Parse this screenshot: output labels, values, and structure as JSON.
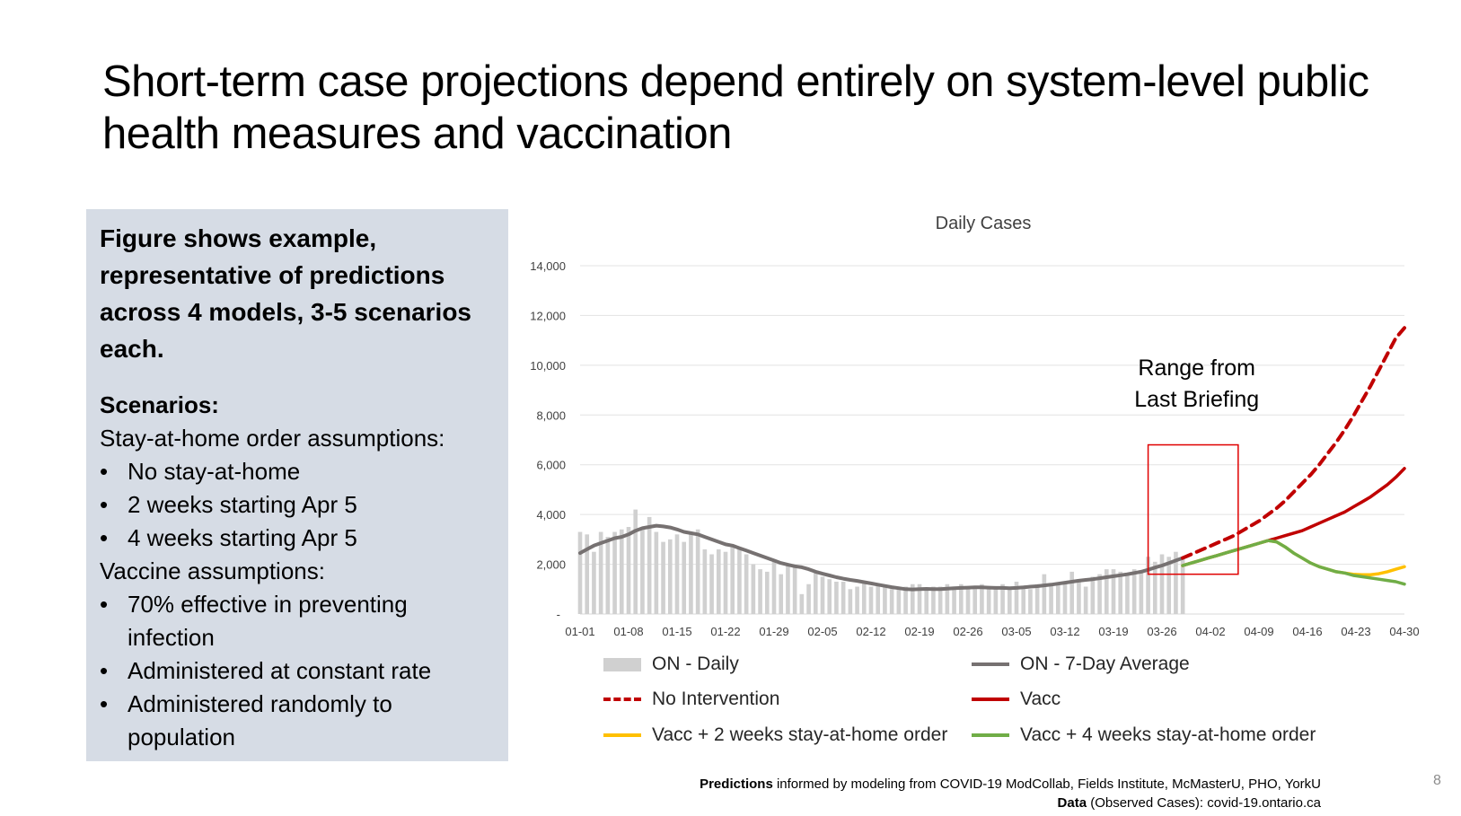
{
  "title": "Short-term case projections depend entirely on system-level public health measures and vaccination",
  "panel": {
    "intro": "Figure shows example, representative of predictions across 4 models, 3-5 scenarios each.",
    "scenarios_heading": "Scenarios:",
    "stay_heading": "Stay-at-home order assumptions:",
    "stay_items": [
      "No stay-at-home",
      "2 weeks starting Apr 5",
      "4 weeks starting Apr 5"
    ],
    "vaccine_heading": "Vaccine assumptions:",
    "vaccine_items": [
      "70% effective in preventing infection",
      "Administered at constant rate",
      "Administered randomly to population"
    ]
  },
  "chart_data": {
    "type": "line",
    "title": "Daily Cases",
    "y_ticks": [
      "-",
      "2,000",
      "4,000",
      "6,000",
      "8,000",
      "10,000",
      "12,000",
      "14,000"
    ],
    "ylim": [
      0,
      14000
    ],
    "x_ticks": [
      "01-01",
      "01-08",
      "01-15",
      "01-22",
      "01-29",
      "02-05",
      "02-12",
      "02-19",
      "02-26",
      "03-05",
      "03-12",
      "03-19",
      "03-26",
      "04-02",
      "04-09",
      "04-16",
      "04-23",
      "04-30"
    ],
    "grid": true,
    "annotation": {
      "text_line1": "Range from",
      "text_line2": "Last Briefing",
      "x_start": "03-24",
      "x_end": "04-06",
      "y_start": 1600,
      "y_end": 6800
    },
    "daily": [
      3300,
      3200,
      2500,
      3300,
      3100,
      3300,
      3400,
      3500,
      4200,
      3400,
      3900,
      3300,
      2900,
      3000,
      3200,
      2900,
      3300,
      3400,
      2600,
      2400,
      2600,
      2500,
      2700,
      2600,
      2400,
      2000,
      1800,
      1700,
      2100,
      1600,
      2000,
      1900,
      800,
      1200,
      1700,
      1500,
      1400,
      1300,
      1300,
      1000,
      1100,
      1300,
      1100,
      1200,
      1100,
      1000,
      1000,
      1100,
      1200,
      1200,
      1000,
      1100,
      1100,
      1200,
      1100,
      1200,
      1000,
      1100,
      1200,
      1100,
      1000,
      1200,
      1000,
      1300,
      1100,
      1000,
      1200,
      1600,
      1200,
      1200,
      1300,
      1700,
      1400,
      1100,
      1500,
      1600,
      1800,
      1800,
      1700,
      1600,
      1800,
      1700,
      2300,
      2100,
      2400,
      2300,
      2500,
      2200
    ],
    "series": [
      {
        "name": "ON - 7-Day Average",
        "x_start": 0,
        "values": [
          2450,
          2600,
          2750,
          2850,
          2950,
          3050,
          3100,
          3200,
          3350,
          3450,
          3500,
          3550,
          3520,
          3480,
          3400,
          3300,
          3250,
          3200,
          3100,
          3000,
          2900,
          2800,
          2750,
          2650,
          2550,
          2450,
          2350,
          2250,
          2150,
          2050,
          1980,
          1920,
          1880,
          1800,
          1700,
          1620,
          1550,
          1480,
          1420,
          1370,
          1330,
          1280,
          1230,
          1180,
          1130,
          1080,
          1040,
          1000,
          990,
          1000,
          1010,
          1000,
          1000,
          1020,
          1040,
          1050,
          1060,
          1070,
          1070,
          1060,
          1050,
          1050,
          1040,
          1050,
          1070,
          1100,
          1120,
          1150,
          1180,
          1220,
          1260,
          1300,
          1340,
          1370,
          1400,
          1440,
          1480,
          1520,
          1560,
          1600,
          1650,
          1700,
          1780,
          1870,
          1950,
          2050,
          2150,
          2250
        ]
      },
      {
        "name": "No Intervention",
        "x_start": 87,
        "values": [
          2250,
          2400,
          2550,
          2700,
          2850,
          3000,
          3150,
          3350,
          3550,
          3750,
          4000,
          4250,
          4550,
          4900,
          5250,
          5600,
          6000,
          6450,
          6900,
          7400,
          7950,
          8550,
          9150,
          9800,
          10450,
          11100,
          11500
        ]
      },
      {
        "name": "Vacc",
        "x_start": 87,
        "values": [
          1950,
          2050,
          2150,
          2250,
          2350,
          2450,
          2550,
          2650,
          2750,
          2850,
          2950,
          3050,
          3150,
          3250,
          3350,
          3500,
          3650,
          3800,
          3950,
          4100,
          4300,
          4500,
          4700,
          4950,
          5200,
          5500,
          5850
        ]
      },
      {
        "name": "Vacc + 2 weeks stay-at-home order",
        "x_start": 87,
        "values": [
          1950,
          2050,
          2150,
          2250,
          2350,
          2450,
          2550,
          2650,
          2750,
          2850,
          2950,
          2900,
          2700,
          2450,
          2250,
          2050,
          1900,
          1800,
          1700,
          1650,
          1600,
          1580,
          1580,
          1620,
          1700,
          1800,
          1900
        ]
      },
      {
        "name": "Vacc + 4 weeks stay-at-home order",
        "x_start": 87,
        "values": [
          1950,
          2050,
          2150,
          2250,
          2350,
          2450,
          2550,
          2650,
          2750,
          2850,
          2950,
          2900,
          2700,
          2450,
          2250,
          2050,
          1900,
          1800,
          1700,
          1650,
          1550,
          1500,
          1450,
          1400,
          1350,
          1300,
          1200
        ]
      }
    ],
    "legend": [
      {
        "label": "ON - Daily",
        "style": "bar",
        "color": "#d0d0d0"
      },
      {
        "label": "ON - 7-Day Average",
        "style": "line",
        "color": "#767171"
      },
      {
        "label": "No Intervention",
        "style": "dashed",
        "color": "#c00000"
      },
      {
        "label": "Vacc",
        "style": "line",
        "color": "#c00000"
      },
      {
        "label": "Vacc + 2 weeks stay-at-home order",
        "style": "line",
        "color": "#ffc000"
      },
      {
        "label": "Vacc + 4 weeks stay-at-home order",
        "style": "line",
        "color": "#70ad47"
      }
    ]
  },
  "footer": {
    "line1_bold": "Predictions",
    "line1_rest": " informed by modeling from COVID-19 ModCollab, Fields Institute, McMasterU, PHO, YorkU",
    "line2_bold": "Data",
    "line2_rest": " (Observed Cases): covid-19.ontario.ca"
  },
  "page_number": "8"
}
